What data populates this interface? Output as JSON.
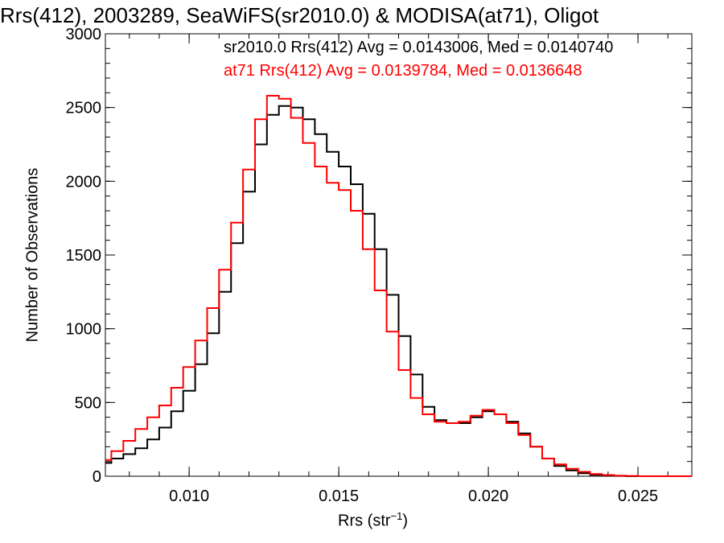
{
  "chart_data": {
    "type": "line",
    "title": "Rrs(412), 2003289, SeaWiFS(sr2010.0) & MODISA(at71), Oligot",
    "xlabel_main": "Rrs (str",
    "xlabel_sup": "−1",
    "xlabel_close": ")",
    "ylabel": "Number of Observations",
    "xlim": [
      0.0072,
      0.0268
    ],
    "ylim": [
      0,
      3000
    ],
    "xticks": [
      0.01,
      0.015,
      0.02,
      0.025
    ],
    "xtick_labels": [
      "0.010",
      "0.015",
      "0.020",
      "0.025"
    ],
    "yticks": [
      0,
      500,
      1000,
      1500,
      2000,
      2500,
      3000
    ],
    "ytick_labels": [
      "0",
      "500",
      "1000",
      "1500",
      "2000",
      "2500",
      "3000"
    ],
    "grid": false,
    "legend_placement": "top-right",
    "series": [
      {
        "name": "sr2010.0 Rrs(412)",
        "legend_text": "sr2010.0 Rrs(412) Avg = 0.0143006, Med = 0.0140740",
        "color": "#000000",
        "x": [
          0.0072,
          0.0076,
          0.008,
          0.0084,
          0.0088,
          0.0092,
          0.0096,
          0.01,
          0.0104,
          0.0108,
          0.0112,
          0.0116,
          0.012,
          0.0124,
          0.0128,
          0.0132,
          0.0136,
          0.014,
          0.0144,
          0.0148,
          0.0152,
          0.0156,
          0.016,
          0.0164,
          0.0168,
          0.0172,
          0.0176,
          0.018,
          0.0184,
          0.0188,
          0.0192,
          0.0196,
          0.02,
          0.0204,
          0.0208,
          0.0212,
          0.0216,
          0.022,
          0.0224,
          0.0228,
          0.0232,
          0.0236,
          0.024,
          0.0244,
          0.0248,
          0.0252,
          0.0256,
          0.026,
          0.0264,
          0.0268
        ],
        "y": [
          90,
          120,
          150,
          190,
          250,
          330,
          440,
          580,
          760,
          970,
          1250,
          1580,
          1930,
          2250,
          2450,
          2510,
          2500,
          2420,
          2320,
          2200,
          2100,
          1980,
          1780,
          1540,
          1230,
          950,
          690,
          470,
          380,
          360,
          360,
          400,
          440,
          420,
          370,
          290,
          200,
          120,
          70,
          40,
          20,
          10,
          5,
          2,
          0,
          0,
          0,
          0,
          0,
          0
        ]
      },
      {
        "name": "at71 Rrs(412)",
        "legend_text": "at71 Rrs(412) Avg = 0.0139784, Med = 0.0136648",
        "color": "#ff0000",
        "x": [
          0.0072,
          0.0076,
          0.008,
          0.0084,
          0.0088,
          0.0092,
          0.0096,
          0.01,
          0.0104,
          0.0108,
          0.0112,
          0.0116,
          0.012,
          0.0124,
          0.0128,
          0.0132,
          0.0136,
          0.014,
          0.0144,
          0.0148,
          0.0152,
          0.0156,
          0.016,
          0.0164,
          0.0168,
          0.0172,
          0.0176,
          0.018,
          0.0184,
          0.0188,
          0.0192,
          0.0196,
          0.02,
          0.0204,
          0.0208,
          0.0212,
          0.0216,
          0.022,
          0.0224,
          0.0228,
          0.0232,
          0.0236,
          0.024,
          0.0244,
          0.0248,
          0.0252,
          0.0256,
          0.026,
          0.0264,
          0.0268
        ],
        "y": [
          110,
          170,
          240,
          320,
          400,
          480,
          600,
          740,
          920,
          1140,
          1400,
          1720,
          2080,
          2420,
          2580,
          2560,
          2430,
          2260,
          2100,
          1990,
          1940,
          1800,
          1540,
          1260,
          980,
          720,
          530,
          420,
          370,
          360,
          370,
          410,
          450,
          420,
          360,
          280,
          200,
          120,
          80,
          50,
          30,
          15,
          8,
          4,
          2,
          0,
          0,
          0,
          0,
          0
        ]
      }
    ]
  }
}
